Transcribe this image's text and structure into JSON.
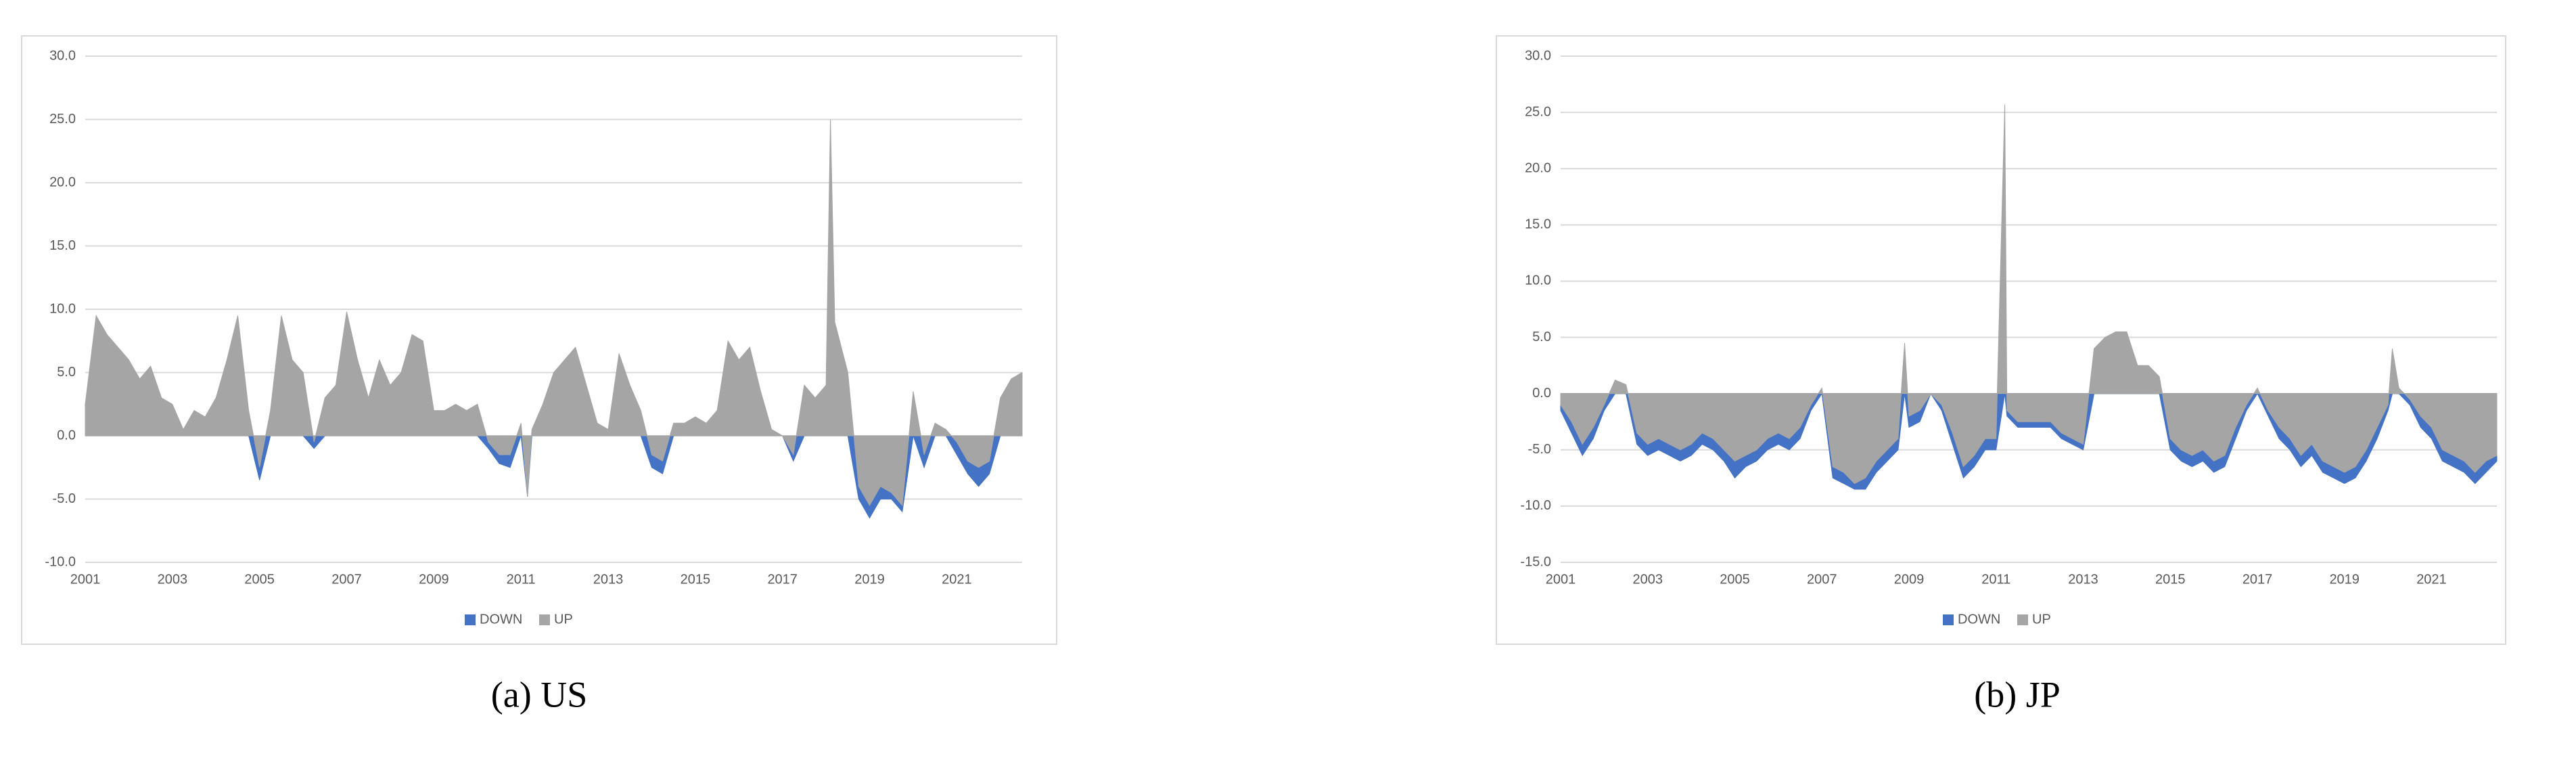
{
  "chart_data": [
    {
      "type": "area",
      "caption": "(a) US",
      "x": [
        2001,
        2001.25,
        2001.5,
        2001.75,
        2002,
        2002.25,
        2002.5,
        2002.75,
        2003,
        2003.25,
        2003.5,
        2003.75,
        2004,
        2004.25,
        2004.5,
        2004.75,
        2005,
        2005.25,
        2005.5,
        2005.75,
        2006,
        2006.25,
        2006.5,
        2006.75,
        2007,
        2007.25,
        2007.5,
        2007.75,
        2008,
        2008.25,
        2008.5,
        2008.75,
        2009,
        2009.25,
        2009.5,
        2009.75,
        2010,
        2010.25,
        2010.5,
        2010.75,
        2011,
        2011.15,
        2011.25,
        2011.5,
        2011.75,
        2012,
        2012.25,
        2012.5,
        2012.75,
        2013,
        2013.25,
        2013.5,
        2013.75,
        2014,
        2014.25,
        2014.5,
        2014.75,
        2015,
        2015.25,
        2015.5,
        2015.75,
        2016,
        2016.25,
        2016.5,
        2016.75,
        2017,
        2017.25,
        2017.5,
        2017.75,
        2018,
        2018.1,
        2018.2,
        2018.5,
        2018.75,
        2019,
        2019.25,
        2019.5,
        2019.75,
        2020,
        2020.25,
        2020.5,
        2020.75,
        2021,
        2021.25,
        2021.5,
        2021.75,
        2022,
        2022.25,
        2022.5
      ],
      "series": [
        {
          "name": "DOWN",
          "color": "#4472c4",
          "values": [
            0,
            0,
            0,
            0,
            0,
            0,
            0,
            0,
            0,
            0,
            0,
            0,
            0,
            0,
            0,
            0,
            -3.5,
            0,
            0,
            0,
            0,
            -1,
            0,
            0,
            0,
            0,
            0,
            0,
            0,
            0,
            0,
            0,
            0,
            0,
            0,
            0,
            0,
            -1,
            -2.2,
            -2.5,
            0,
            -4.8,
            0,
            0,
            0,
            0,
            0,
            0,
            0,
            0,
            0,
            0,
            0,
            -2.5,
            -3,
            0,
            0,
            0,
            0,
            0,
            0,
            0,
            0,
            0,
            0,
            0,
            -2,
            0,
            0,
            0,
            0,
            0,
            0,
            -5,
            -6.5,
            -5,
            -5,
            -6,
            0,
            -2.5,
            0,
            0,
            -1.5,
            -3,
            -4,
            -3,
            0,
            0,
            0
          ]
        },
        {
          "name": "UP",
          "color": "#a5a5a5",
          "values": [
            2.5,
            9.5,
            8,
            7,
            6,
            4.5,
            5.5,
            3,
            2.5,
            0.5,
            2,
            1.5,
            3,
            6,
            9.5,
            2,
            -2.5,
            2,
            9.5,
            6,
            5,
            -0.5,
            3,
            4,
            9.8,
            6,
            3,
            6,
            4,
            5,
            8,
            7.5,
            2,
            2,
            2.5,
            2,
            2.5,
            -0.5,
            -1.5,
            -1.5,
            1,
            -4.8,
            0.5,
            2.5,
            5,
            6,
            7,
            4,
            1,
            0.5,
            6.5,
            4,
            2,
            -1.5,
            -2,
            1,
            1,
            1.5,
            1,
            2,
            7.5,
            6,
            7,
            3.5,
            0.5,
            0,
            -1.5,
            4,
            3,
            4,
            25,
            9,
            5,
            -4,
            -5.5,
            -4,
            -4.5,
            -5.5,
            3.5,
            -1.5,
            1,
            0.5,
            -0.5,
            -2,
            -2.5,
            -2,
            3,
            4.5,
            5
          ]
        }
      ],
      "xlim": [
        2001,
        2022.5
      ],
      "xticks": [
        2001,
        2003,
        2005,
        2007,
        2009,
        2011,
        2013,
        2015,
        2017,
        2019,
        2021
      ],
      "ylim": [
        -10,
        30
      ],
      "yticks": [
        {
          "value": -10,
          "label": "-10.0"
        },
        {
          "value": -5,
          "label": "-5.0"
        },
        {
          "value": 0,
          "label": "0.0"
        },
        {
          "value": 5,
          "label": "5.0"
        },
        {
          "value": 10,
          "label": "10.0"
        },
        {
          "value": 15,
          "label": "15.0"
        },
        {
          "value": 20,
          "label": "20.0"
        },
        {
          "value": 25,
          "label": "25.0"
        },
        {
          "value": 30,
          "label": "30.0"
        }
      ],
      "grid": true,
      "legend": "bottom"
    },
    {
      "type": "area",
      "caption": "(b) JP",
      "x": [
        2001,
        2001.25,
        2001.5,
        2001.75,
        2002,
        2002.25,
        2002.5,
        2002.75,
        2003,
        2003.25,
        2003.5,
        2003.75,
        2004,
        2004.25,
        2004.5,
        2004.75,
        2005,
        2005.25,
        2005.5,
        2005.75,
        2006,
        2006.25,
        2006.5,
        2006.75,
        2007,
        2007.25,
        2007.5,
        2007.75,
        2008,
        2008.25,
        2008.5,
        2008.75,
        2008.9,
        2009,
        2009.25,
        2009.5,
        2009.75,
        2010,
        2010.25,
        2010.5,
        2010.75,
        2011,
        2011.2,
        2011.25,
        2011.5,
        2011.75,
        2012,
        2012.25,
        2012.5,
        2012.75,
        2013,
        2013.25,
        2013.5,
        2013.75,
        2014,
        2014.25,
        2014.5,
        2014.75,
        2015,
        2015.25,
        2015.5,
        2015.75,
        2016,
        2016.25,
        2016.5,
        2016.75,
        2017,
        2017.25,
        2017.5,
        2017.75,
        2018,
        2018.25,
        2018.5,
        2018.75,
        2019,
        2019.25,
        2019.5,
        2019.75,
        2020,
        2020.1,
        2020.25,
        2020.5,
        2020.75,
        2021,
        2021.25,
        2021.5,
        2021.75,
        2022,
        2022.25,
        2022.5
      ],
      "series": [
        {
          "name": "DOWN",
          "color": "#4472c4",
          "values": [
            -1.5,
            -3.5,
            -5.5,
            -4,
            -1.5,
            0,
            0,
            -4.5,
            -5.5,
            -5,
            -5.5,
            -6,
            -5.5,
            -4.5,
            -5,
            -6,
            -7.5,
            -6.5,
            -6,
            -5,
            -4.5,
            -5,
            -4,
            -1.5,
            0,
            -7.5,
            -8,
            -8.5,
            -8.5,
            -7,
            -6,
            -5,
            0,
            -3,
            -2.5,
            0,
            -1.5,
            -4.5,
            -7.5,
            -6.5,
            -5,
            -5,
            0,
            -2,
            -3,
            -3,
            -3,
            -3,
            -4,
            -4.5,
            -5,
            0,
            0,
            0,
            0,
            0,
            0,
            0,
            -5,
            -6,
            -6.5,
            -6,
            -7,
            -6.5,
            -4,
            -1.5,
            0,
            -2,
            -4,
            -5,
            -6.5,
            -5.5,
            -7,
            -7.5,
            -8,
            -7.5,
            -6,
            -4,
            -1.5,
            0,
            0,
            -1,
            -3,
            -4,
            -6,
            -6.5,
            -7,
            -8,
            -7,
            -6
          ]
        },
        {
          "name": "UP",
          "color": "#a5a5a5",
          "values": [
            -1,
            -2.5,
            -4.5,
            -3,
            -1,
            1.2,
            0.8,
            -3.5,
            -4.5,
            -4,
            -4.5,
            -5,
            -4.5,
            -3.5,
            -4,
            -5,
            -6,
            -5.5,
            -5,
            -4,
            -3.5,
            -4,
            -3,
            -1,
            0.5,
            -6.5,
            -7,
            -8,
            -7.5,
            -6,
            -5,
            -4,
            4.5,
            -2,
            -1.5,
            0,
            -1,
            -3.5,
            -6.5,
            -5.5,
            -4,
            -4,
            25.7,
            -1.5,
            -2.5,
            -2.5,
            -2.5,
            -2.5,
            -3.5,
            -4,
            -4.5,
            4,
            5,
            5.5,
            5.5,
            2.5,
            2.5,
            1.5,
            -4,
            -5,
            -5.5,
            -5,
            -6,
            -5.5,
            -3,
            -1,
            0.5,
            -1.5,
            -3,
            -4,
            -5.5,
            -4.5,
            -6,
            -6.5,
            -7,
            -6.5,
            -5,
            -3,
            -1,
            4,
            0.5,
            -0.5,
            -2,
            -3,
            -5,
            -5.5,
            -6,
            -7,
            -6,
            -5.5
          ]
        }
      ],
      "xlim": [
        2001,
        2022.5
      ],
      "xticks": [
        2001,
        2003,
        2005,
        2007,
        2009,
        2011,
        2013,
        2015,
        2017,
        2019,
        2021
      ],
      "ylim": [
        -15,
        30
      ],
      "yticks": [
        {
          "value": -15,
          "label": "-15.0"
        },
        {
          "value": -10,
          "label": "-10.0"
        },
        {
          "value": -5,
          "label": "-5.0"
        },
        {
          "value": 0,
          "label": "0.0"
        },
        {
          "value": 5,
          "label": "5.0"
        },
        {
          "value": 10,
          "label": "10.0"
        },
        {
          "value": 15,
          "label": "15.0"
        },
        {
          "value": 20,
          "label": "20.0"
        },
        {
          "value": 25,
          "label": "25.0"
        },
        {
          "value": 30,
          "label": "30.0"
        }
      ],
      "grid": true,
      "legend": "bottom"
    }
  ]
}
